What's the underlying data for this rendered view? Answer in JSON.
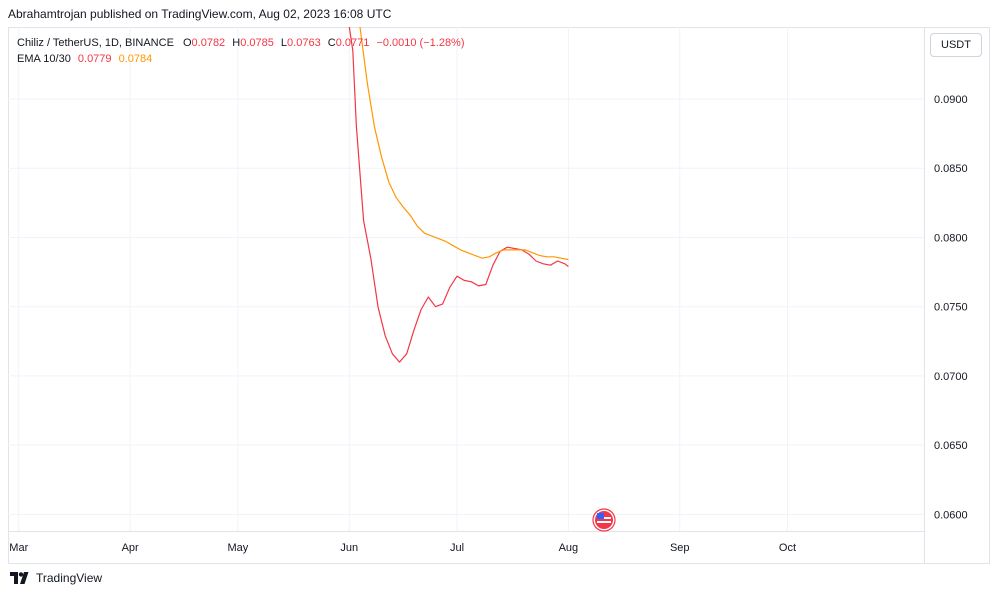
{
  "header": {
    "author": "Abrahamtrojan",
    "publish_text": "Abrahamtrojan published on TradingView.com, Aug 02, 2023 16:08 UTC"
  },
  "legend": {
    "symbol": "Chiliz / TetherUS, 1D, BINANCE",
    "o_label": "O",
    "o_value": "0.0782",
    "h_label": "H",
    "h_value": "0.0785",
    "l_label": "L",
    "l_value": "0.0763",
    "c_label": "C",
    "c_value": "0.0771",
    "change": "−0.0010 (−1.28%)",
    "ema_label": "EMA 10/30",
    "ema10_value": "0.0779",
    "ema30_value": "0.0784"
  },
  "currency_button": "USDT",
  "footer": {
    "brand": "TradingView",
    "logo_icon": "tradingview-logo-icon"
  },
  "event_marker": {
    "icon": "us-flag-icon"
  },
  "colors": {
    "ema10": "#f23645",
    "ema30": "#ff9800",
    "grid": "#f0f3fa",
    "border": "#e0e3eb"
  },
  "chart_data": {
    "type": "line",
    "title": "",
    "xlabel": "",
    "ylabel": "",
    "x_ticks": [
      "Mar",
      "Apr",
      "May",
      "Jun",
      "Jul",
      "Aug",
      "Sep",
      "Oct"
    ],
    "y_ticks": [
      "0.0900",
      "0.0850",
      "0.0800",
      "0.0750",
      "0.0700",
      "0.0650",
      "0.0600"
    ],
    "ylim": [
      0.0588,
      0.0952
    ],
    "xlim": [
      "2023-02-26",
      "2023-11-08"
    ],
    "grid": true,
    "series": [
      {
        "name": "EMA 10",
        "color": "#f23645",
        "points": [
          [
            "2023-06-01",
            0.0952
          ],
          [
            "2023-06-02",
            0.0935
          ],
          [
            "2023-06-03",
            0.088
          ],
          [
            "2023-06-05",
            0.0812
          ],
          [
            "2023-06-07",
            0.0785
          ],
          [
            "2023-06-09",
            0.075
          ],
          [
            "2023-06-11",
            0.0729
          ],
          [
            "2023-06-13",
            0.0716
          ],
          [
            "2023-06-15",
            0.071
          ],
          [
            "2023-06-17",
            0.0716
          ],
          [
            "2023-06-19",
            0.0733
          ],
          [
            "2023-06-21",
            0.0748
          ],
          [
            "2023-06-23",
            0.0757
          ],
          [
            "2023-06-25",
            0.075
          ],
          [
            "2023-06-27",
            0.0752
          ],
          [
            "2023-06-29",
            0.0764
          ],
          [
            "2023-07-01",
            0.0772
          ],
          [
            "2023-07-03",
            0.0769
          ],
          [
            "2023-07-05",
            0.0768
          ],
          [
            "2023-07-07",
            0.0765
          ],
          [
            "2023-07-09",
            0.0766
          ],
          [
            "2023-07-11",
            0.078
          ],
          [
            "2023-07-13",
            0.079
          ],
          [
            "2023-07-15",
            0.0793
          ],
          [
            "2023-07-17",
            0.0792
          ],
          [
            "2023-07-19",
            0.0791
          ],
          [
            "2023-07-21",
            0.0788
          ],
          [
            "2023-07-23",
            0.0783
          ],
          [
            "2023-07-25",
            0.0781
          ],
          [
            "2023-07-27",
            0.078
          ],
          [
            "2023-07-29",
            0.0783
          ],
          [
            "2023-07-31",
            0.0781
          ],
          [
            "2023-08-01",
            0.0779
          ]
        ]
      },
      {
        "name": "EMA 30",
        "color": "#ff9800",
        "points": [
          [
            "2023-06-04",
            0.0952
          ],
          [
            "2023-06-06",
            0.0912
          ],
          [
            "2023-06-08",
            0.088
          ],
          [
            "2023-06-10",
            0.0858
          ],
          [
            "2023-06-12",
            0.084
          ],
          [
            "2023-06-14",
            0.0829
          ],
          [
            "2023-06-16",
            0.0822
          ],
          [
            "2023-06-18",
            0.0816
          ],
          [
            "2023-06-20",
            0.0808
          ],
          [
            "2023-06-22",
            0.0803
          ],
          [
            "2023-06-24",
            0.0801
          ],
          [
            "2023-06-26",
            0.0799
          ],
          [
            "2023-06-28",
            0.0797
          ],
          [
            "2023-06-30",
            0.0794
          ],
          [
            "2023-07-02",
            0.0791
          ],
          [
            "2023-07-04",
            0.0789
          ],
          [
            "2023-07-06",
            0.0787
          ],
          [
            "2023-07-08",
            0.0785
          ],
          [
            "2023-07-10",
            0.0786
          ],
          [
            "2023-07-12",
            0.0789
          ],
          [
            "2023-07-14",
            0.0791
          ],
          [
            "2023-07-16",
            0.0791
          ],
          [
            "2023-07-18",
            0.0791
          ],
          [
            "2023-07-20",
            0.0791
          ],
          [
            "2023-07-22",
            0.0789
          ],
          [
            "2023-07-24",
            0.0787
          ],
          [
            "2023-07-26",
            0.0786
          ],
          [
            "2023-07-28",
            0.0786
          ],
          [
            "2023-07-30",
            0.0785
          ],
          [
            "2023-08-01",
            0.0784
          ]
        ]
      }
    ]
  }
}
